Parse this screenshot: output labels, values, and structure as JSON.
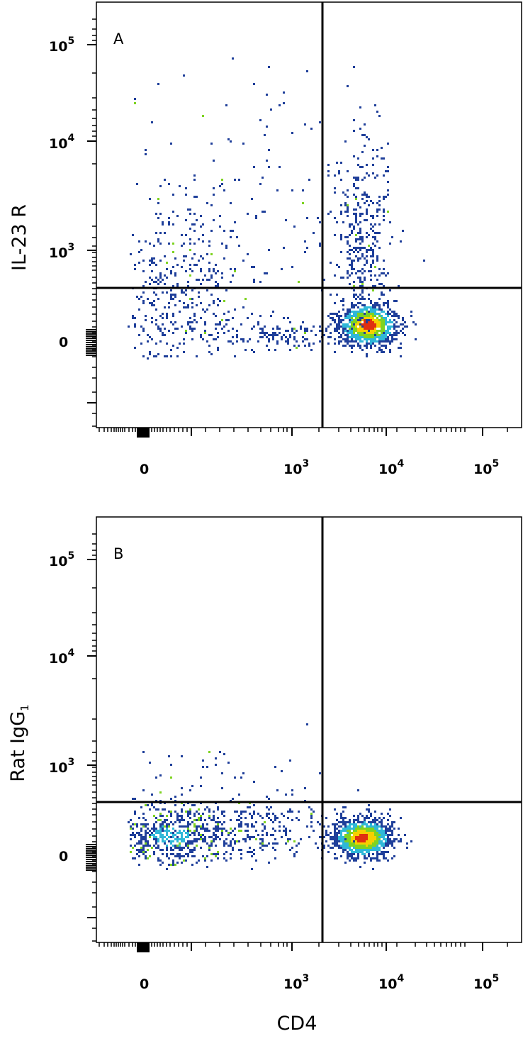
{
  "figure": {
    "shared_xlabel": "CD4",
    "panels": [
      {
        "letter": "A",
        "ylabel": "IL-23 R",
        "ylabel_sub": ""
      },
      {
        "letter": "B",
        "ylabel": "Rat IgG",
        "ylabel_sub": "1"
      }
    ],
    "x_ticks": [
      {
        "base": "0",
        "exp": ""
      },
      {
        "base": "10",
        "exp": "3"
      },
      {
        "base": "10",
        "exp": "4"
      },
      {
        "base": "10",
        "exp": "5"
      }
    ],
    "y_ticks": [
      {
        "base": "0",
        "exp": ""
      },
      {
        "base": "10",
        "exp": "3"
      },
      {
        "base": "10",
        "exp": "4"
      },
      {
        "base": "10",
        "exp": "5"
      }
    ]
  },
  "colors": {
    "density_low": "#1f3f9a",
    "density_mid_low": "#2fb8d8",
    "density_mid": "#7ed321",
    "density_mid_high": "#f5d000",
    "density_high": "#e03010",
    "gate_line": "#000000"
  },
  "chart_data": [
    {
      "type": "scatter",
      "panel": "A",
      "title": "",
      "xlabel": "CD4",
      "ylabel": "IL-23 R",
      "x_scale": "biexponential",
      "y_scale": "biexponential",
      "xlim": [
        -400,
        200000
      ],
      "ylim": [
        -800,
        200000
      ],
      "quadrant_gate": {
        "x": 2000,
        "y": 400
      },
      "populations": [
        {
          "name": "CD4+ IL-23R- cluster",
          "x_center": 5200,
          "y_center": 180,
          "relative_density": "high"
        },
        {
          "name": "CD4+ IL-23R+",
          "x_center": 5000,
          "y_center": 1800,
          "relative_density": "medium"
        },
        {
          "name": "CD4- IL-23R+/-",
          "x_center": 150,
          "y_center": 500,
          "relative_density": "low"
        }
      ],
      "grid": false,
      "legend": "none"
    },
    {
      "type": "scatter",
      "panel": "B",
      "title": "",
      "xlabel": "CD4",
      "ylabel": "Rat IgG1",
      "x_scale": "biexponential",
      "y_scale": "biexponential",
      "xlim": [
        -400,
        200000
      ],
      "ylim": [
        -800,
        200000
      ],
      "quadrant_gate": {
        "x": 2000,
        "y": 400
      },
      "populations": [
        {
          "name": "CD4+ cluster",
          "x_center": 5200,
          "y_center": 180,
          "relative_density": "high"
        },
        {
          "name": "CD4- cluster",
          "x_center": 120,
          "y_center": 150,
          "relative_density": "medium"
        }
      ],
      "grid": false,
      "legend": "none"
    }
  ]
}
